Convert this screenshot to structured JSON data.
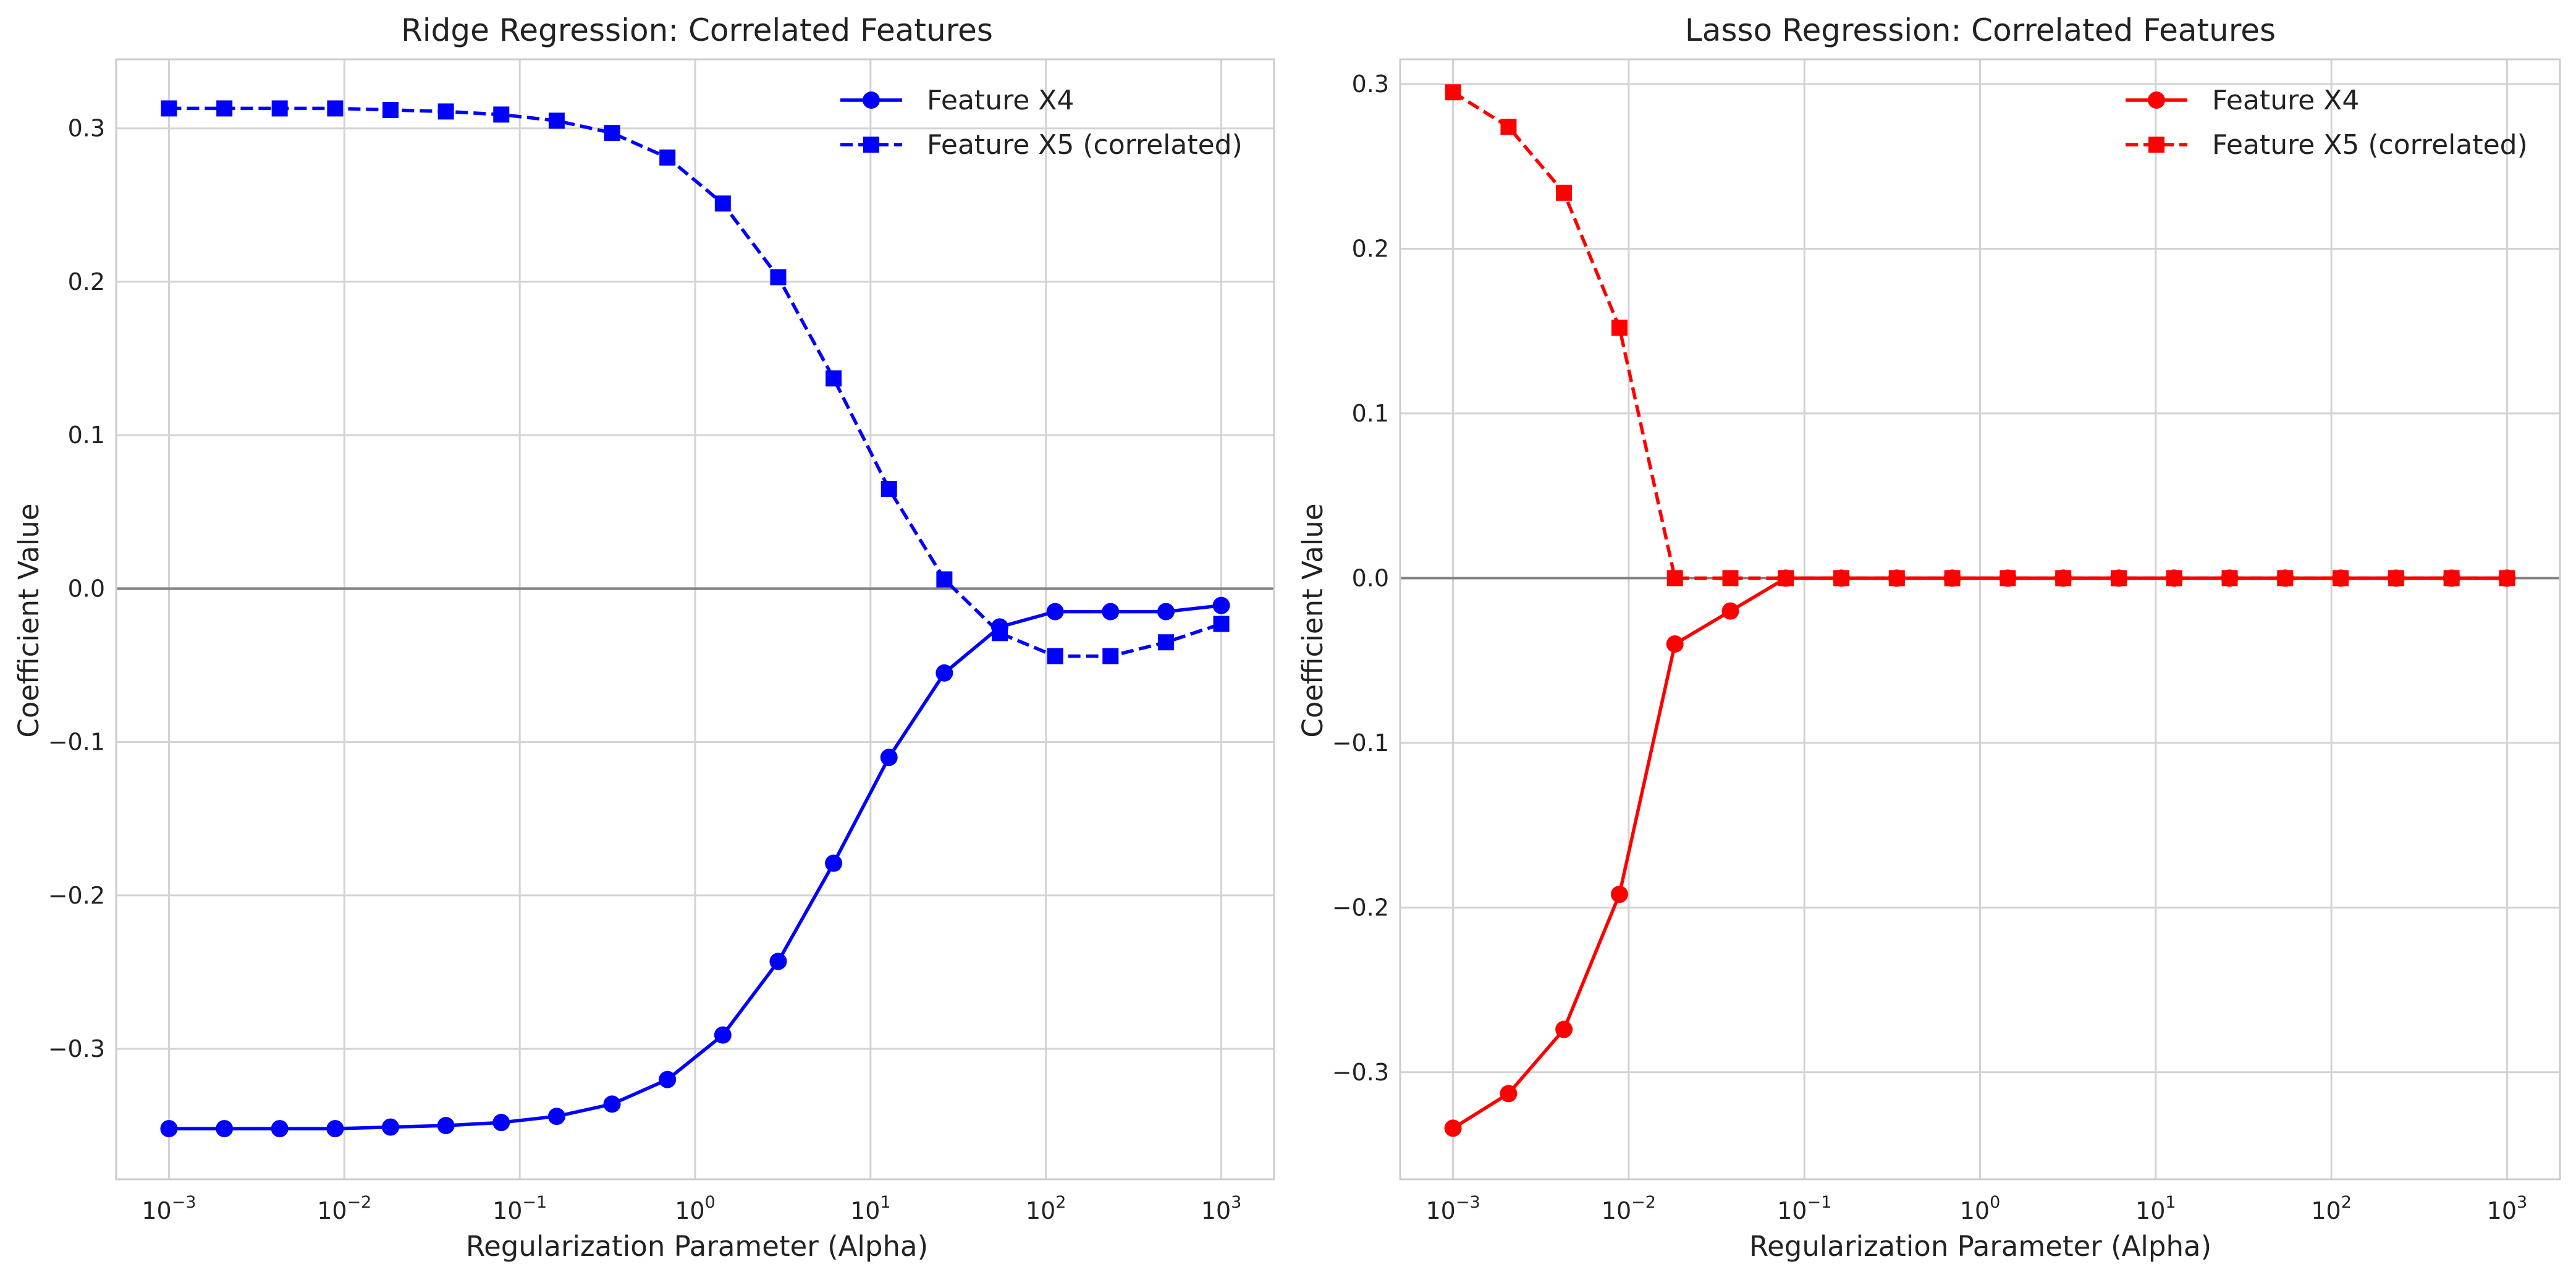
{
  "chart_data": [
    {
      "type": "line",
      "title": "Ridge Regression: Correlated Features",
      "xlabel": "Regularization Parameter (Alpha)",
      "ylabel": "Coefficient Value",
      "xscale": "log",
      "xlim": [
        0.0005,
        2000
      ],
      "ylim": [
        -0.385,
        0.345
      ],
      "xticks": [
        "10^-3",
        "10^-2",
        "10^-1",
        "10^0",
        "10^1",
        "10^2",
        "10^3"
      ],
      "yticks": [
        "0.3",
        "0.2",
        "0.1",
        "0.0",
        "−0.1",
        "−0.2",
        "−0.3"
      ],
      "grid": true,
      "legend_position": "top-right",
      "color": "#0000ff",
      "x": [
        0.001,
        0.00207,
        0.00428,
        0.00886,
        0.01833,
        0.03793,
        0.07848,
        0.16238,
        0.33598,
        0.69519,
        1.4384,
        2.97635,
        6.15848,
        12.74275,
        26.36651,
        54.55595,
        112.88379,
        233.57215,
        483.29302,
        1000
      ],
      "series": [
        {
          "name": "Feature X4",
          "marker": "circle",
          "linestyle": "solid",
          "values": [
            -0.352,
            -0.352,
            -0.352,
            -0.352,
            -0.351,
            -0.35,
            -0.348,
            -0.344,
            -0.336,
            -0.32,
            -0.291,
            -0.243,
            -0.179,
            -0.11,
            -0.055,
            -0.025,
            -0.015,
            -0.015,
            -0.015,
            -0.011
          ]
        },
        {
          "name": "Feature X5 (correlated)",
          "marker": "square",
          "linestyle": "dashed",
          "values": [
            0.313,
            0.313,
            0.313,
            0.313,
            0.312,
            0.311,
            0.309,
            0.305,
            0.297,
            0.281,
            0.251,
            0.203,
            0.137,
            0.065,
            0.006,
            -0.029,
            -0.044,
            -0.044,
            -0.035,
            -0.023
          ]
        }
      ]
    },
    {
      "type": "line",
      "title": "Lasso Regression: Correlated Features",
      "xlabel": "Regularization Parameter (Alpha)",
      "ylabel": "Coefficient Value",
      "xscale": "log",
      "xlim": [
        0.0005,
        2000
      ],
      "ylim": [
        -0.365,
        0.315
      ],
      "xticks": [
        "10^-3",
        "10^-2",
        "10^-1",
        "10^0",
        "10^1",
        "10^2",
        "10^3"
      ],
      "yticks": [
        "0.3",
        "0.2",
        "0.1",
        "0.0",
        "−0.1",
        "−0.2",
        "−0.3"
      ],
      "grid": true,
      "legend_position": "top-right",
      "color": "#ff0000",
      "x": [
        0.001,
        0.00207,
        0.00428,
        0.00886,
        0.01833,
        0.03793,
        0.07848,
        0.16238,
        0.33598,
        0.69519,
        1.4384,
        2.97635,
        6.15848,
        12.74275,
        26.36651,
        54.55595,
        112.88379,
        233.57215,
        483.29302,
        1000
      ],
      "series": [
        {
          "name": "Feature X4",
          "marker": "circle",
          "linestyle": "solid",
          "values": [
            -0.334,
            -0.313,
            -0.274,
            -0.192,
            -0.04,
            -0.02,
            0,
            0,
            0,
            0,
            0,
            0,
            0,
            0,
            0,
            0,
            0,
            0,
            0,
            0
          ]
        },
        {
          "name": "Feature X5 (correlated)",
          "marker": "square",
          "linestyle": "dashed",
          "values": [
            0.295,
            0.274,
            0.234,
            0.152,
            0,
            0,
            0,
            0,
            0,
            0,
            0,
            0,
            0,
            0,
            0,
            0,
            0,
            0,
            0,
            0
          ]
        }
      ]
    }
  ],
  "style": {
    "grid_color": "#d3d3d3",
    "spine_color": "#cccccc",
    "zero_line_color": "#808080",
    "text_color": "#222222"
  }
}
